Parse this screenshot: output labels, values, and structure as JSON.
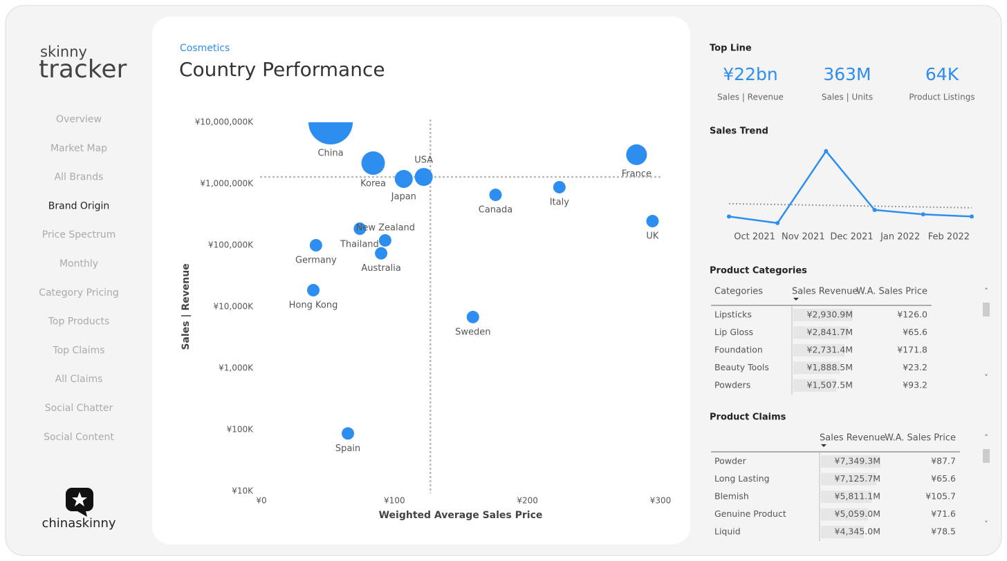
{
  "logo": {
    "line1": "skinny",
    "line2": "tracker",
    "brand": "chinaskinny"
  },
  "nav": {
    "items": [
      "Overview",
      "Market Map",
      "All Brands",
      "Brand Origin",
      "Price Spectrum",
      "Monthly",
      "Category Pricing",
      "Top Products",
      "Top Claims",
      "All Claims",
      "Social Chatter",
      "Social Content"
    ],
    "active": 3
  },
  "header": {
    "subtitle": "Cosmetics",
    "title": "Country Performance"
  },
  "chart_data": [
    {
      "type": "scatter",
      "color": "#2d8ef0",
      "xlabel": "Weighted Average Sales Price",
      "ylabel": "Sales | Revenue",
      "log_y": true,
      "xlim": [
        0,
        300
      ],
      "xticks": [
        {
          "value": 0,
          "label": "¥0"
        },
        {
          "value": 100,
          "label": "¥100"
        },
        {
          "value": 200,
          "label": "¥200"
        },
        {
          "value": 300,
          "label": "¥300"
        }
      ],
      "ylim": [
        10000,
        10000000000
      ],
      "yticks": [
        {
          "value": 10000,
          "label": "¥10K"
        },
        {
          "value": 100000,
          "label": "¥100K"
        },
        {
          "value": 1000000,
          "label": "¥1,000K"
        },
        {
          "value": 10000000,
          "label": "¥10,000K"
        },
        {
          "value": 100000000,
          "label": "¥100,000K"
        },
        {
          "value": 1000000000,
          "label": "¥1,000,000K"
        },
        {
          "value": 10000000000,
          "label": "¥10,000,000K"
        }
      ],
      "reference_lines": {
        "x": 127,
        "y": 1290000000
      },
      "labels": [
        "China",
        "Korea",
        "Japan",
        "USA",
        "France",
        "Canada",
        "Italy",
        "UK",
        "New Zealand",
        "Thailand",
        "Germany",
        "Australia",
        "Hong Kong",
        "Sweden",
        "Spain"
      ],
      "x": [
        52,
        84,
        107,
        122,
        282,
        176,
        224,
        294,
        74,
        93,
        41,
        90,
        39,
        159,
        65
      ],
      "values": [
        10000000000,
        2170000000,
        1200000000,
        1290000000,
        2970000000,
        660000000,
        880000000,
        247000000,
        186000000,
        120000000,
        100000000,
        74000000,
        18600000,
        6800000,
        87000
      ],
      "sizes": [
        1024,
        289,
        169,
        169,
        225,
        81,
        81,
        81,
        81,
        81,
        81,
        81,
        81,
        81,
        81
      ]
    },
    {
      "type": "line",
      "title": "Sales Trend",
      "color": "#2d8ef0",
      "categories": [
        null,
        "Oct 2021",
        "Nov 2021",
        "Dec 2021",
        "Jan 2022",
        "Feb 2022"
      ],
      "values": [
        3.0,
        2.7,
        6.0,
        3.3,
        3.1,
        3.0
      ],
      "trend": [
        3.59,
        3.4
      ],
      "ylim": [
        0,
        6.5
      ]
    }
  ],
  "top_line": {
    "title": "Top Line",
    "kpis": [
      {
        "value": "¥22bn",
        "label": "Sales | Revenue"
      },
      {
        "value": "363M",
        "label": "Sales | Units"
      },
      {
        "value": "64K",
        "label": "Product Listings"
      }
    ]
  },
  "tables": [
    {
      "title": "Product Categories",
      "header": [
        "Categories",
        "Sales Revenue",
        "W.A. Sales Price"
      ],
      "rows": [
        [
          "Lipsticks",
          "¥2,930.9M",
          "¥126.0"
        ],
        [
          "Lip Gloss",
          "¥2,841.7M",
          "¥65.6"
        ],
        [
          "Foundation",
          "¥2,731.4M",
          "¥171.8"
        ],
        [
          "Beauty Tools",
          "¥1,888.5M",
          "¥23.2"
        ],
        [
          "Powders",
          "¥1,507.5M",
          "¥93.2"
        ]
      ]
    },
    {
      "title": "Product Claims",
      "header": [
        "",
        "Sales Revenue",
        "W.A. Sales Price"
      ],
      "rows": [
        [
          "Powder",
          "¥7,349.3M",
          "¥87.7"
        ],
        [
          "Long Lasting",
          "¥7,125.7M",
          "¥65.6"
        ],
        [
          "Blemish",
          "¥5,811.1M",
          "¥105.7"
        ],
        [
          "Genuine Product",
          "¥5,059.0M",
          "¥71.6"
        ],
        [
          "Liquid",
          "¥4,345.0M",
          "¥78.5"
        ]
      ]
    }
  ]
}
